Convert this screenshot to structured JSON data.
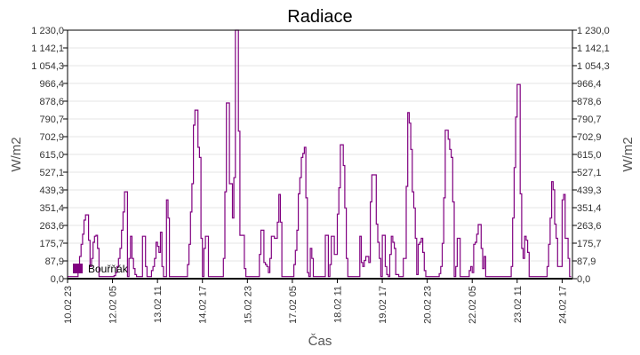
{
  "chart_data": {
    "type": "line",
    "step": true,
    "title": "Radiace",
    "xlabel": "Čas",
    "ylabel": "W/m2",
    "ylabel_right": "W/m2",
    "ylim": [
      0,
      1230
    ],
    "xlim": [
      "10.02 23",
      "24.02 23"
    ],
    "grid": true,
    "legend_position": "bottom-left",
    "y_ticks": [
      "0,0",
      "87,9",
      "175,7",
      "263,6",
      "351,4",
      "439,3",
      "527,1",
      "615,0",
      "702,9",
      "790,7",
      "878,6",
      "966,4",
      "1 054,3",
      "1 142,1",
      "1 230,0"
    ],
    "y_tick_values": [
      0,
      87.9,
      175.7,
      263.6,
      351.4,
      439.3,
      527.1,
      615.0,
      702.9,
      790.7,
      878.6,
      966.4,
      1054.3,
      1142.1,
      1230.0
    ],
    "x_ticks": [
      "10.02 23",
      "12.02 05",
      "13.02 11",
      "14.02 17",
      "15.02 23",
      "17.02 05",
      "18.02 11",
      "19.02 17",
      "20.02 23",
      "22.02 05",
      "23.02 11",
      "24.02 17"
    ],
    "series": [
      {
        "name": "Bouřňák",
        "color": "#800080",
        "data": [
          {
            "date": "10.02",
            "points": [
              [
                23,
                10
              ]
            ]
          },
          {
            "date": "11.02",
            "points": [
              [
                5,
                10
              ],
              [
                6,
                50
              ],
              [
                7,
                110
              ],
              [
                8,
                170
              ],
              [
                9,
                220
              ],
              [
                10,
                290
              ],
              [
                11,
                316
              ],
              [
                12,
                316
              ],
              [
                13,
                190
              ],
              [
                14,
                60
              ],
              [
                15,
                100
              ],
              [
                16,
                180
              ],
              [
                17,
                210
              ],
              [
                18,
                215
              ],
              [
                19,
                150
              ],
              [
                20,
                10
              ]
            ]
          },
          {
            "date": "12.02",
            "points": [
              [
                5,
                10
              ],
              [
                6,
                15
              ],
              [
                7,
                30
              ],
              [
                8,
                60
              ],
              [
                9,
                100
              ],
              [
                10,
                150
              ],
              [
                11,
                240
              ],
              [
                12,
                330
              ],
              [
                13,
                430
              ],
              [
                14,
                430
              ],
              [
                15,
                10
              ],
              [
                16,
                100
              ],
              [
                17,
                210
              ],
              [
                18,
                100
              ],
              [
                19,
                50
              ],
              [
                20,
                20
              ],
              [
                21,
                10
              ]
            ]
          },
          {
            "date": "13.02",
            "points": [
              [
                0,
                10
              ],
              [
                1,
                210
              ],
              [
                2,
                210
              ],
              [
                3,
                60
              ],
              [
                4,
                10
              ],
              [
                6,
                10
              ],
              [
                7,
                40
              ],
              [
                8,
                60
              ],
              [
                9,
                100
              ],
              [
                10,
                180
              ],
              [
                11,
                160
              ],
              [
                12,
                130
              ],
              [
                13,
                230
              ],
              [
                14,
                60
              ],
              [
                15,
                10
              ],
              [
                16,
                10
              ],
              [
                17,
                390
              ],
              [
                18,
                300
              ],
              [
                19,
                10
              ]
            ]
          },
          {
            "date": "14.02",
            "points": [
              [
                6,
                10
              ],
              [
                7,
                70
              ],
              [
                8,
                170
              ],
              [
                9,
                330
              ],
              [
                10,
                470
              ],
              [
                11,
                760
              ],
              [
                12,
                834
              ],
              [
                13,
                834
              ],
              [
                14,
                650
              ],
              [
                15,
                600
              ],
              [
                16,
                200
              ],
              [
                17,
                10
              ],
              [
                18,
                150
              ],
              [
                19,
                210
              ],
              [
                20,
                210
              ],
              [
                21,
                10
              ]
            ]
          },
          {
            "date": "15.02",
            "points": [
              [
                6,
                10
              ],
              [
                7,
                100
              ],
              [
                8,
                430
              ],
              [
                9,
                870
              ],
              [
                10,
                870
              ],
              [
                11,
                470
              ],
              [
                12,
                470
              ],
              [
                13,
                300
              ],
              [
                14,
                500
              ],
              [
                15,
                1230
              ],
              [
                16,
                1230
              ],
              [
                17,
                730
              ],
              [
                18,
                215
              ],
              [
                19,
                215
              ],
              [
                20,
                215
              ],
              [
                21,
                50
              ],
              [
                22,
                10
              ]
            ]
          },
          {
            "date": "16.02",
            "points": [
              [
                6,
                10
              ],
              [
                7,
                120
              ],
              [
                8,
                240
              ],
              [
                9,
                240
              ],
              [
                10,
                80
              ],
              [
                11,
                70
              ],
              [
                12,
                60
              ],
              [
                13,
                30
              ],
              [
                14,
                100
              ],
              [
                15,
                210
              ],
              [
                16,
                210
              ],
              [
                17,
                200
              ],
              [
                18,
                200
              ],
              [
                19,
                280
              ],
              [
                20,
                417
              ],
              [
                21,
                280
              ],
              [
                22,
                10
              ]
            ]
          },
          {
            "date": "17.02",
            "points": [
              [
                5,
                10
              ],
              [
                6,
                70
              ],
              [
                7,
                140
              ],
              [
                8,
                240
              ],
              [
                9,
                420
              ],
              [
                10,
                500
              ],
              [
                11,
                600
              ],
              [
                12,
                620
              ],
              [
                13,
                650
              ],
              [
                14,
                400
              ],
              [
                15,
                30
              ],
              [
                16,
                10
              ],
              [
                17,
                150
              ],
              [
                18,
                100
              ],
              [
                19,
                10
              ]
            ]
          },
          {
            "date": "18.02",
            "points": [
              [
                2,
                10
              ],
              [
                3,
                215
              ],
              [
                4,
                215
              ],
              [
                5,
                10
              ],
              [
                6,
                70
              ],
              [
                7,
                210
              ],
              [
                8,
                210
              ],
              [
                9,
                120
              ],
              [
                10,
                120
              ],
              [
                11,
                320
              ],
              [
                12,
                450
              ],
              [
                13,
                663
              ],
              [
                14,
                663
              ],
              [
                15,
                560
              ],
              [
                16,
                350
              ],
              [
                17,
                100
              ],
              [
                18,
                10
              ]
            ]
          },
          {
            "date": "19.02",
            "points": [
              [
                1,
                10
              ],
              [
                2,
                210
              ],
              [
                3,
                80
              ],
              [
                4,
                60
              ],
              [
                5,
                90
              ],
              [
                6,
                110
              ],
              [
                7,
                110
              ],
              [
                8,
                80
              ],
              [
                9,
                380
              ],
              [
                10,
                514
              ],
              [
                11,
                514
              ],
              [
                12,
                514
              ],
              [
                13,
                270
              ],
              [
                14,
                180
              ],
              [
                15,
                100
              ],
              [
                16,
                10
              ],
              [
                17,
                215
              ],
              [
                18,
                215
              ],
              [
                19,
                60
              ],
              [
                20,
                20
              ],
              [
                21,
                10
              ],
              [
                22,
                120
              ],
              [
                23,
                210
              ]
            ]
          },
          {
            "date": "20.02",
            "points": [
              [
                0,
                180
              ],
              [
                1,
                150
              ],
              [
                2,
                20
              ],
              [
                4,
                10
              ],
              [
                6,
                10
              ],
              [
                7,
                100
              ],
              [
                8,
                100
              ],
              [
                9,
                457
              ],
              [
                10,
                822
              ],
              [
                11,
                770
              ],
              [
                12,
                640
              ],
              [
                13,
                430
              ],
              [
                14,
                350
              ],
              [
                15,
                200
              ],
              [
                16,
                20
              ],
              [
                17,
                170
              ],
              [
                18,
                180
              ],
              [
                19,
                200
              ],
              [
                20,
                130
              ],
              [
                21,
                40
              ],
              [
                22,
                10
              ]
            ]
          },
          {
            "date": "21.02",
            "points": [
              [
                6,
                10
              ],
              [
                7,
                25
              ],
              [
                8,
                60
              ],
              [
                9,
                175
              ],
              [
                10,
                400
              ],
              [
                11,
                735
              ],
              [
                12,
                735
              ],
              [
                13,
                690
              ],
              [
                14,
                640
              ],
              [
                15,
                600
              ],
              [
                16,
                380
              ],
              [
                17,
                10
              ],
              [
                18,
                60
              ],
              [
                19,
                200
              ],
              [
                20,
                200
              ],
              [
                21,
                10
              ]
            ]
          },
          {
            "date": "22.02",
            "points": [
              [
                2,
                10
              ],
              [
                3,
                40
              ],
              [
                4,
                60
              ],
              [
                5,
                30
              ],
              [
                6,
                170
              ],
              [
                7,
                180
              ],
              [
                8,
                220
              ],
              [
                9,
                268
              ],
              [
                10,
                268
              ],
              [
                11,
                150
              ],
              [
                12,
                50
              ],
              [
                13,
                110
              ],
              [
                14,
                10
              ]
            ]
          },
          {
            "date": "23.02",
            "points": [
              [
                6,
                10
              ],
              [
                7,
                60
              ],
              [
                8,
                300
              ],
              [
                9,
                550
              ],
              [
                10,
                800
              ],
              [
                11,
                961
              ],
              [
                12,
                961
              ],
              [
                13,
                420
              ],
              [
                14,
                150
              ],
              [
                15,
                100
              ],
              [
                16,
                210
              ],
              [
                17,
                190
              ],
              [
                18,
                130
              ],
              [
                19,
                10
              ]
            ]
          },
          {
            "date": "24.02",
            "points": [
              [
                6,
                10
              ],
              [
                7,
                60
              ],
              [
                8,
                170
              ],
              [
                9,
                300
              ],
              [
                10,
                480
              ],
              [
                11,
                440
              ],
              [
                12,
                270
              ],
              [
                13,
                200
              ],
              [
                14,
                60
              ],
              [
                15,
                60
              ],
              [
                16,
                60
              ],
              [
                17,
                390
              ],
              [
                18,
                417
              ],
              [
                19,
                200
              ],
              [
                20,
                200
              ],
              [
                21,
                100
              ],
              [
                22,
                10
              ],
              [
                23,
                10
              ]
            ]
          }
        ]
      }
    ]
  }
}
